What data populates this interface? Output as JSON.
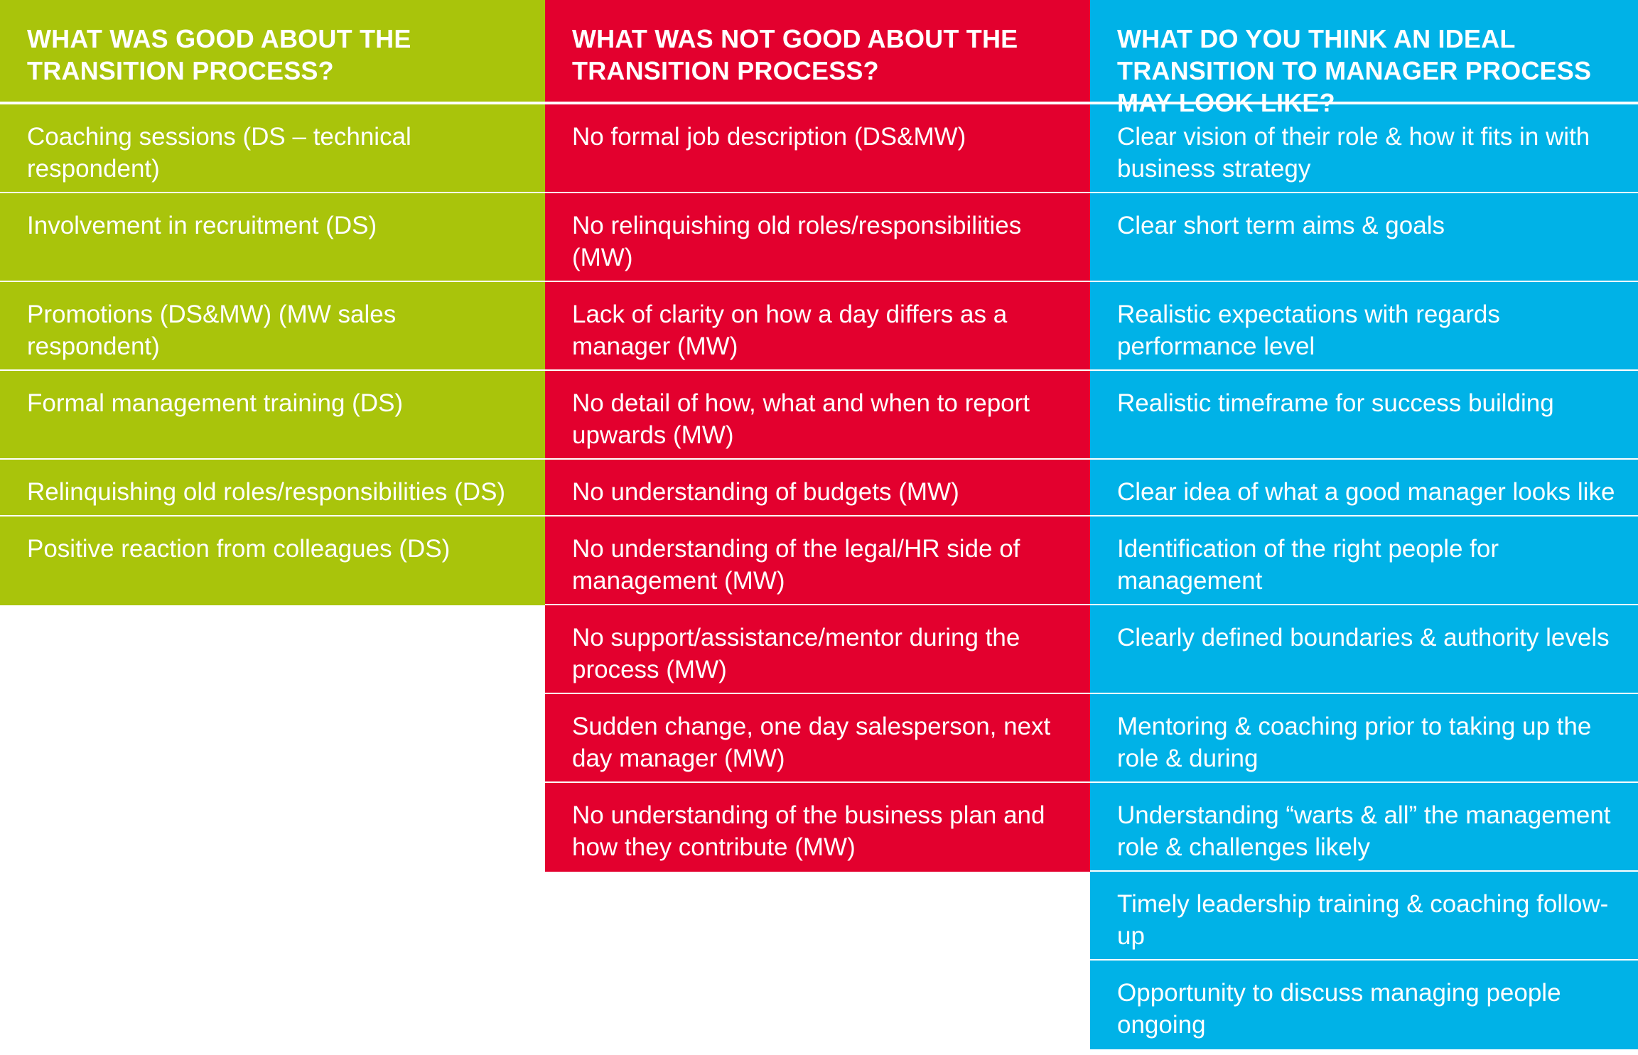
{
  "columns": {
    "good": {
      "header": "WHAT WAS GOOD ABOUT THE TRANSITION PROCESS?",
      "items": [
        "Coaching sessions (DS – technical respondent)",
        "Involvement in recruitment (DS)",
        "Promotions (DS&MW) (MW sales respondent)",
        "Formal management training (DS)",
        "Relinquishing old roles/responsibilities (DS)",
        "Positive reaction from colleagues (DS)"
      ]
    },
    "bad": {
      "header": "WHAT WAS NOT GOOD ABOUT THE TRANSITION PROCESS?",
      "items": [
        "No formal job description (DS&MW)",
        "No relinquishing old roles/responsibilities (MW)",
        "Lack of clarity on how a day differs as a manager (MW)",
        "No detail of how, what and when to report upwards (MW)",
        "No understanding of budgets (MW)",
        "No understanding of the legal/HR side of management (MW)",
        "No support/assistance/mentor during the process (MW)",
        "Sudden change, one day salesperson, next day manager (MW)",
        "No understanding of the business plan and how they contribute (MW)"
      ]
    },
    "ideal": {
      "header": "WHAT DO YOU THINK AN IDEAL TRANSITION TO MANAGER PROCESS MAY LOOK LIKE?",
      "items": [
        "Clear vision of their role & how it fits in with business strategy",
        "Clear short term aims & goals",
        "Realistic expectations with regards performance level",
        "Realistic timeframe for success building",
        "Clear idea of what a good manager looks like",
        "Identification of the right people for management",
        "Clearly defined boundaries & authority levels",
        "Mentoring & coaching prior to taking up the role & during",
        "Understanding “warts & all” the management role & challenges likely",
        "Timely leadership training & coaching follow-up",
        "Opportunity to discuss managing people ongoing"
      ]
    }
  },
  "colors": {
    "good": "#a9c40b",
    "bad": "#e3002e",
    "ideal": "#00b2e7"
  }
}
